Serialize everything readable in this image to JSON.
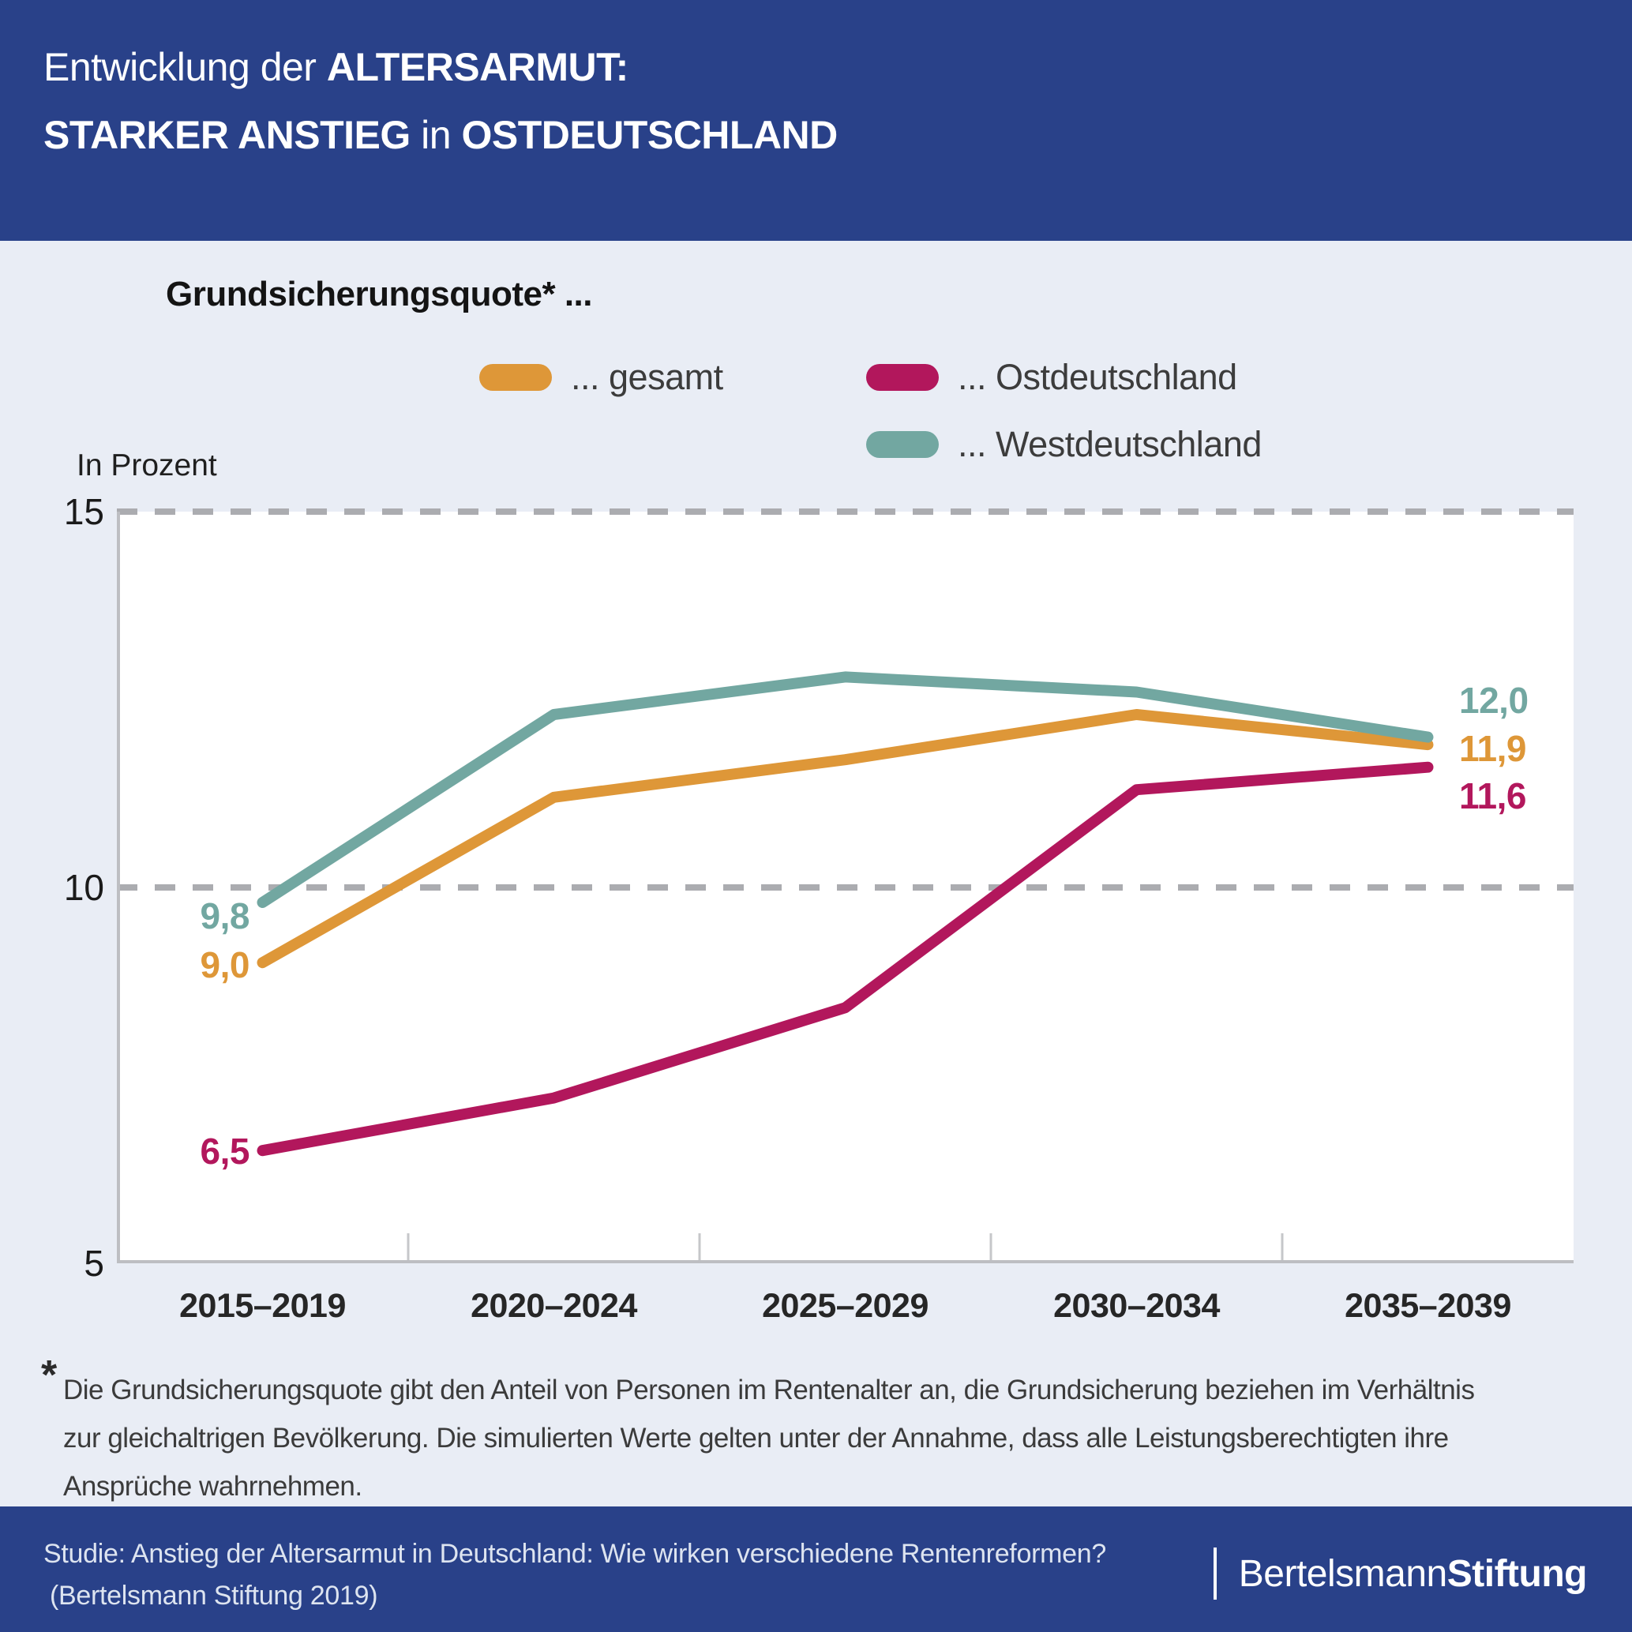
{
  "header": {
    "line1_regular": "Entwicklung der ",
    "line1_bold": "ALTERSARMUT:",
    "line2_bold_a": "STARKER ANSTIEG",
    "line2_regular": " in ",
    "line2_bold_b": "OSTDEUTSCHLAND"
  },
  "chart_data": {
    "type": "line",
    "title": "Grundsicherungsquote* ...",
    "ylabel": "In Prozent",
    "categories": [
      "2015–2019",
      "2020–2024",
      "2025–2029",
      "2030–2034",
      "2035–2039"
    ],
    "series": [
      {
        "name": "... gesamt",
        "key": "gesamt",
        "color": "#DE9738",
        "values": [
          9.0,
          11.2,
          11.7,
          12.3,
          11.9
        ],
        "start_label": "9,0",
        "end_label": "11,9"
      },
      {
        "name": "... Ostdeutschland",
        "key": "ostdeutschland",
        "color": "#B2175C",
        "values": [
          6.5,
          7.2,
          8.4,
          11.3,
          11.6
        ],
        "start_label": "6,5",
        "end_label": "11,6"
      },
      {
        "name": "... Westdeutschland",
        "key": "westdeutschland",
        "color": "#72A7A1",
        "values": [
          9.8,
          12.3,
          12.8,
          12.6,
          12.0
        ],
        "start_label": "9,8",
        "end_label": "12,0"
      }
    ],
    "ylim": [
      5,
      15
    ],
    "yticks": [
      15,
      10,
      5
    ],
    "grid": "horizontal-dashed",
    "legend_position": "top"
  },
  "footnote": {
    "marker": "*",
    "lines": [
      "Die Grundsicherungsquote gibt den Anteil von Personen im Rentenalter an, die Grundsicherung beziehen im Verhältnis",
      "zur gleichaltrigen Bevölkerung. Die simulierten Werte gelten unter der Annahme, dass alle Leistungsberechtigten ihre",
      "Ansprüche wahrnehmen."
    ]
  },
  "footer": {
    "source_line1": "Studie: Anstieg der Altersarmut in Deutschland: Wie wirken verschiedene Rentenreformen?",
    "source_line2": "(Bertelsmann Stiftung 2019)",
    "logo_regular": "Bertelsmann",
    "logo_bold": "Stiftung"
  },
  "colors": {
    "header_bg": "#294189",
    "body_bg": "#E9EDF5",
    "plot_bg": "#FFFFFF",
    "grid": "#ABACB0",
    "axis": "#BDBEC2",
    "tick": "#C6C7CA"
  }
}
